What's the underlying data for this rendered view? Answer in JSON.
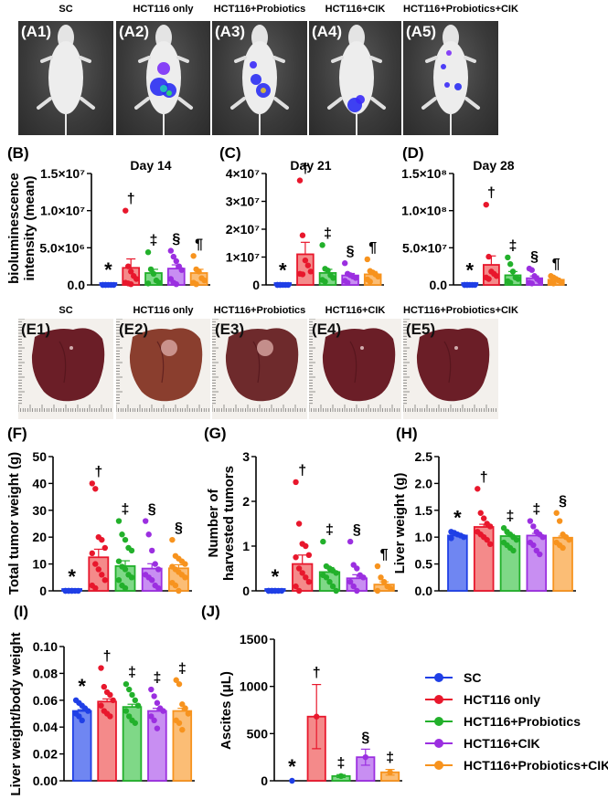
{
  "groups": [
    {
      "name": "SC",
      "color": "#1f3fe6",
      "fill": "#6f86f2"
    },
    {
      "name": "HCT116 only",
      "color": "#e8172c",
      "fill": "#f48a8a"
    },
    {
      "name": "HCT116+Probiotics",
      "color": "#22b02b",
      "fill": "#7fd887"
    },
    {
      "name": "HCT116+CIK",
      "color": "#9b2fe0",
      "fill": "#c88ef2"
    },
    {
      "name": "HCT116+Probiotics+CIK",
      "color": "#f7931e",
      "fill": "#fbbd75"
    }
  ],
  "mouse_panels": {
    "titles": [
      "SC",
      "HCT116 only",
      "HCT116+Probiotics",
      "HCT116+CIK",
      "HCT116+Probiotics+CIK"
    ],
    "labels": [
      "(A1)",
      "(A2)",
      "(A3)",
      "(A4)",
      "(A5)"
    ]
  },
  "liver_panels": {
    "titles": [
      "SC",
      "HCT116 only",
      "HCT116+Probiotics",
      "HCT116+CIK",
      "HCT116+Probiotics+CIK"
    ],
    "labels": [
      "(E1)",
      "(E2)",
      "(E3)",
      "(E4)",
      "(E5)"
    ]
  },
  "legend": {
    "items": [
      "SC",
      "HCT116 only",
      "HCT116+Probiotics",
      "HCT116+CIK",
      "HCT116+Probiotics+CIK"
    ]
  },
  "chart_data": [
    {
      "id": "B",
      "letter": "(B)",
      "type": "bar",
      "title": "Day 14",
      "ylabel": "bioluminescence intensity (mean)",
      "categories": [
        "SC",
        "HCT116 only",
        "HCT116+Probiotics",
        "HCT116+CIK",
        "HCT116+Probiotics+CIK"
      ],
      "ylim": [
        0,
        15000000
      ],
      "yticks": [
        0,
        5000000,
        10000000,
        15000000
      ],
      "ytick_labels": [
        "0.0",
        "5.0×10⁶",
        "1.0×10⁷",
        "1.5×10⁷"
      ],
      "values": [
        100000,
        2300000,
        1600000,
        2200000,
        1600000
      ],
      "errors": [
        0,
        1200000,
        500000,
        500000,
        500000
      ],
      "points": [
        [
          0,
          0,
          0,
          0,
          0,
          0,
          0
        ],
        [
          10000000,
          2500000,
          1800000,
          1200000,
          800000,
          300000,
          200000,
          100000
        ],
        [
          4400000,
          2100000,
          1500000,
          600000,
          300000,
          200000
        ],
        [
          4600000,
          3800000,
          3200000,
          2500000,
          2000000,
          800000,
          300000,
          100000
        ],
        [
          3900000,
          2100000,
          1800000,
          900000,
          600000,
          300000,
          100000
        ]
      ],
      "annotations": [
        "*",
        "†",
        "‡",
        "§",
        "¶"
      ]
    },
    {
      "id": "C",
      "letter": "(C)",
      "type": "bar",
      "title": "Day 21",
      "ylabel": "",
      "categories": [
        "SC",
        "HCT116 only",
        "HCT116+Probiotics",
        "HCT116+CIK",
        "HCT116+Probiotics+CIK"
      ],
      "ylim": [
        0,
        40000000
      ],
      "yticks": [
        0,
        10000000,
        20000000,
        30000000,
        40000000
      ],
      "ytick_labels": [
        "0",
        "1×10⁷",
        "2×10⁷",
        "3×10⁷",
        "4×10⁷"
      ],
      "values": [
        100000,
        11000000,
        4300000,
        3400000,
        3800000
      ],
      "errors": [
        0,
        4300000,
        1300000,
        700000,
        1000000
      ],
      "points": [
        [
          0,
          0,
          0,
          0,
          0,
          0,
          0
        ],
        [
          37500000,
          17800000,
          8800000,
          7000000,
          4800000,
          4000000,
          3800000
        ],
        [
          14300000,
          5800000,
          5200000,
          3500000,
          2500000,
          1800000,
          1200000
        ],
        [
          7800000,
          4000000,
          3500000,
          3000000,
          2500000,
          1500000,
          800000
        ],
        [
          9200000,
          5000000,
          4500000,
          3800000,
          3000000,
          2000000,
          1200000
        ]
      ],
      "annotations": [
        "*",
        "†",
        "‡",
        "§",
        "¶"
      ]
    },
    {
      "id": "D",
      "letter": "(D)",
      "type": "bar",
      "title": "Day 28",
      "ylabel": "",
      "categories": [
        "SC",
        "HCT116 only",
        "HCT116+Probiotics",
        "HCT116+CIK",
        "HCT116+Probiotics+CIK"
      ],
      "ylim": [
        0,
        150000000
      ],
      "yticks": [
        0,
        50000000,
        100000000,
        150000000
      ],
      "ytick_labels": [
        "0.0",
        "5.0×10⁷",
        "1.0×10⁸",
        "1.5×10⁸"
      ],
      "values": [
        500000,
        27000000,
        13000000,
        9000000,
        7000000
      ],
      "errors": [
        0,
        12000000,
        5000000,
        3000000,
        2000000
      ],
      "points": [
        [
          0,
          0,
          0,
          0,
          0,
          0,
          0
        ],
        [
          108000000,
          38000000,
          18000000,
          15000000,
          12000000,
          10000000,
          8000000
        ],
        [
          37000000,
          28000000,
          18000000,
          10000000,
          8000000,
          5000000,
          3000000
        ],
        [
          22000000,
          20000000,
          12000000,
          8000000,
          5000000,
          3000000,
          2000000
        ],
        [
          12000000,
          10000000,
          8000000,
          6000000,
          4000000,
          3000000,
          2000000
        ]
      ],
      "annotations": [
        "*",
        "†",
        "‡",
        "§",
        "¶"
      ]
    },
    {
      "id": "F",
      "letter": "(F)",
      "type": "bar",
      "title": "",
      "ylabel": "Total tumor weight (g)",
      "categories": [
        "SC",
        "HCT116 only",
        "HCT116+Probiotics",
        "HCT116+CIK",
        "HCT116+Probiotics+CIK"
      ],
      "ylim": [
        0,
        50
      ],
      "yticks": [
        0,
        10,
        20,
        30,
        40,
        50
      ],
      "ytick_labels": [
        "0",
        "10",
        "20",
        "30",
        "40",
        "50"
      ],
      "values": [
        0,
        12.5,
        9.2,
        8.3,
        8.4
      ],
      "errors": [
        0,
        3.0,
        2.0,
        1.8,
        1.3
      ],
      "points": [
        [
          0,
          0,
          0,
          0,
          0,
          0,
          0,
          0
        ],
        [
          40,
          38,
          20,
          19,
          16,
          14,
          10,
          8,
          6,
          4,
          2,
          1
        ],
        [
          26,
          21,
          19,
          16,
          15,
          11,
          9,
          8,
          6,
          5,
          4,
          2,
          1
        ],
        [
          26,
          21,
          15,
          10,
          8,
          6,
          5,
          4,
          2,
          1
        ],
        [
          19,
          13,
          12,
          11,
          10,
          9,
          8,
          7,
          6,
          5,
          3,
          2,
          0
        ]
      ],
      "annotations": [
        "*",
        "†",
        "‡",
        "§",
        "§"
      ]
    },
    {
      "id": "G",
      "letter": "(G)",
      "type": "bar",
      "title": "",
      "ylabel": "Number of harvested tumors",
      "categories": [
        "SC",
        "HCT116 only",
        "HCT116+Probiotics",
        "HCT116+CIK",
        "HCT116+Probiotics+CIK"
      ],
      "ylim": [
        0,
        3
      ],
      "yticks": [
        0,
        1,
        2,
        3
      ],
      "ytick_labels": [
        "0",
        "1",
        "2",
        "3"
      ],
      "values": [
        0,
        0.6,
        0.42,
        0.28,
        0.14
      ],
      "errors": [
        0,
        0.2,
        0.1,
        0.08,
        0.06
      ],
      "points": [
        [
          0,
          0,
          0,
          0,
          0,
          0,
          0,
          0
        ],
        [
          2.43,
          1.5,
          1.05,
          1.0,
          0.8,
          0.75,
          0.5,
          0.4,
          0.3,
          0.2,
          0.1,
          0
        ],
        [
          1.1,
          0.55,
          0.5,
          0.45,
          0.4,
          0.35,
          0.3,
          0.2,
          0.1,
          0
        ],
        [
          1.1,
          0.58,
          0.5,
          0.35,
          0.3,
          0.2,
          0.1,
          0
        ],
        [
          0.55,
          0.3,
          0.2,
          0.1,
          0.05,
          0
        ]
      ],
      "annotations": [
        "*",
        "†",
        "‡",
        "§",
        "¶"
      ]
    },
    {
      "id": "H",
      "letter": "(H)",
      "type": "bar",
      "title": "",
      "ylabel": "Liver weight (g)",
      "categories": [
        "SC",
        "HCT116 only",
        "HCT116+Probiotics",
        "HCT116+CIK",
        "HCT116+Probiotics+CIK"
      ],
      "ylim": [
        0,
        2.5
      ],
      "yticks": [
        0,
        0.5,
        1.0,
        1.5,
        2.0,
        2.5
      ],
      "ytick_labels": [
        "0.0",
        "0.5",
        "1.0",
        "1.5",
        "2.0",
        "2.5"
      ],
      "values": [
        1.03,
        1.19,
        1.02,
        1.03,
        0.99
      ],
      "errors": [
        0.01,
        0.05,
        0.03,
        0.04,
        0.03
      ],
      "points": [
        [
          1.1,
          1.08,
          1.05,
          1.03,
          1.0,
          0.98
        ],
        [
          1.9,
          1.45,
          1.35,
          1.25,
          1.2,
          1.1,
          1.05,
          1.0,
          0.95,
          0.87
        ],
        [
          1.17,
          1.1,
          1.05,
          1.0,
          0.95,
          0.9,
          0.85,
          0.8,
          0.75
        ],
        [
          1.3,
          1.2,
          1.1,
          1.05,
          1.0,
          0.9,
          0.85,
          0.75,
          0.68
        ],
        [
          1.45,
          1.3,
          1.05,
          1.0,
          0.95,
          0.9,
          0.85,
          0.8
        ]
      ],
      "annotations": [
        "*",
        "†",
        "‡",
        "‡",
        "§"
      ]
    },
    {
      "id": "I",
      "letter": "(I)",
      "type": "bar",
      "title": "",
      "ylabel": "Liver weight/body weight",
      "categories": [
        "SC",
        "HCT116 only",
        "HCT116+Probiotics",
        "HCT116+CIK",
        "HCT116+Probiotics+CIK"
      ],
      "ylim": [
        0,
        0.1
      ],
      "yticks": [
        0,
        0.02,
        0.04,
        0.06,
        0.08,
        0.1
      ],
      "ytick_labels": [
        "0.00",
        "0.02",
        "0.04",
        "0.06",
        "0.08",
        "0.10"
      ],
      "values": [
        0.052,
        0.059,
        0.055,
        0.052,
        0.052
      ],
      "errors": [
        0.001,
        0.002,
        0.002,
        0.002,
        0.002
      ],
      "points": [
        [
          0.06,
          0.058,
          0.056,
          0.054,
          0.052,
          0.05,
          0.048,
          0.045
        ],
        [
          0.084,
          0.07,
          0.066,
          0.064,
          0.06,
          0.056,
          0.052,
          0.05,
          0.048
        ],
        [
          0.072,
          0.068,
          0.064,
          0.06,
          0.056,
          0.052,
          0.048,
          0.045,
          0.043
        ],
        [
          0.068,
          0.063,
          0.058,
          0.054,
          0.052,
          0.048,
          0.045,
          0.039
        ],
        [
          0.075,
          0.072,
          0.057,
          0.054,
          0.05,
          0.045,
          0.043,
          0.038
        ]
      ],
      "annotations": [
        "*",
        "†",
        "‡",
        "‡",
        "‡"
      ]
    },
    {
      "id": "J",
      "letter": "(J)",
      "type": "bar",
      "title": "",
      "ylabel": "Ascites (μL)",
      "categories": [
        "SC",
        "HCT116 only",
        "HCT116+Probiotics",
        "HCT116+CIK",
        "HCT116+Probiotics+CIK"
      ],
      "ylim": [
        0,
        1500
      ],
      "yticks": [
        0,
        500,
        1000,
        1500
      ],
      "ytick_labels": [
        "0",
        "500",
        "1000",
        "1500"
      ],
      "values": [
        0,
        680,
        50,
        250,
        90
      ],
      "errors": [
        0,
        340,
        15,
        85,
        30
      ],
      "points": [
        [
          0
        ],
        [
          680
        ],
        [
          50
        ],
        [
          250
        ],
        [
          90
        ]
      ],
      "annotations": [
        "*",
        "†",
        "‡",
        "§",
        "‡"
      ]
    }
  ]
}
